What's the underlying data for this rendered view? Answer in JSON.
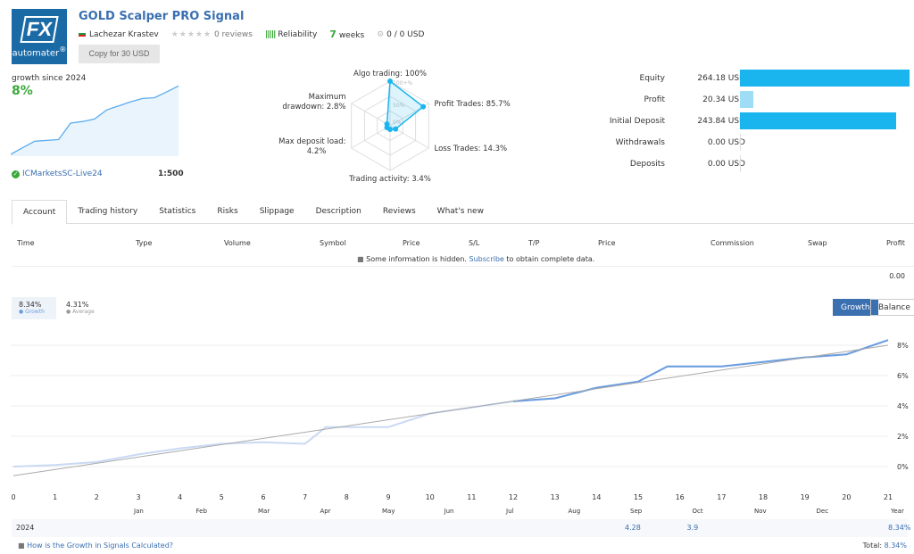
{
  "header": {
    "logo_text": "FX automater",
    "title": "GOLD Scalper PRO Signal",
    "author": "Lachezar Krastev",
    "reviews": "0 reviews",
    "rating_stars": 0,
    "reliability": "Reliability",
    "weeks_num": "7",
    "weeks_label": "weeks",
    "subscribers": "0 / 0 USD",
    "copy_button": "Copy for 30 USD"
  },
  "summary": {
    "growth_label": "growth since 2024",
    "growth_value": "8%",
    "broker": "ICMarketsSC-Live24",
    "leverage": "1:500",
    "mini_chart": [
      0,
      0.8,
      1.6,
      1.7,
      1.8,
      3.8,
      4.0,
      4.3,
      5.4,
      5.9,
      6.4,
      6.8,
      6.9,
      7.6,
      8.34
    ]
  },
  "radar": {
    "labels": [
      "Algo trading: 100%",
      "Profit Trades: 85.7%",
      "Loss Trades: 14.3%",
      "Trading activity: 3.4%",
      "Max deposit load: 4.2%",
      "Maximum drawdown: 2.8%"
    ],
    "values": [
      100,
      85.7,
      14.3,
      3.4,
      4.2,
      2.8
    ],
    "grid_labels": [
      "100+%",
      "50%",
      "0%"
    ]
  },
  "balance": {
    "rows": [
      {
        "label": "Equity",
        "value": "264.18 USD",
        "amount": 264.18,
        "color": "#1ab5ee"
      },
      {
        "label": "Profit",
        "value": "20.34 USD",
        "amount": 20.34,
        "color": "#9fdcf5"
      },
      {
        "label": "Initial Deposit",
        "value": "243.84 USD",
        "amount": 243.84,
        "color": "#1ab5ee"
      },
      {
        "label": "Withdrawals",
        "value": "0.00 USD",
        "amount": 0,
        "color": "#1ab5ee"
      },
      {
        "label": "Deposits",
        "value": "0.00 USD",
        "amount": 0,
        "color": "#1ab5ee"
      }
    ]
  },
  "tabs": [
    "Account",
    "Trading history",
    "Statistics",
    "Risks",
    "Slippage",
    "Description",
    "Reviews",
    "What's new"
  ],
  "table": {
    "headers": [
      "Time",
      "Type",
      "Volume",
      "Symbol",
      "Price",
      "S/L",
      "T/P",
      "Price",
      "Commission",
      "Swap",
      "Profit"
    ],
    "hidden_pre": "Some information is hidden.",
    "hidden_link": "Subscribe",
    "hidden_post": "to obtain complete data.",
    "total": "0.00"
  },
  "chart_data": {
    "type": "line",
    "legend": [
      {
        "value": "8.34%",
        "name": "Growth"
      },
      {
        "value": "4.31%",
        "name": "Average"
      }
    ],
    "buttons": [
      "Growth",
      "Balance"
    ],
    "active_button": "Growth",
    "xlim": [
      0,
      21
    ],
    "ylim": [
      -0.5,
      8.5
    ],
    "x_ticks": [
      0,
      1,
      2,
      3,
      4,
      5,
      6,
      7,
      8,
      9,
      10,
      11,
      12,
      13,
      14,
      15,
      16,
      17,
      18,
      19,
      20,
      21
    ],
    "y_ticks": [
      "0%",
      "2%",
      "4%",
      "6%",
      "8%"
    ],
    "month_labels": [
      "Jan",
      "Feb",
      "Mar",
      "Apr",
      "May",
      "Jun",
      "Jul",
      "Aug",
      "Sep",
      "Oct",
      "Nov",
      "Dec",
      "Year"
    ],
    "series": [
      {
        "name": "Growth",
        "x": [
          0,
          1,
          2,
          3,
          4,
          5,
          6,
          7,
          7.5,
          8,
          9,
          10,
          11,
          12,
          13,
          14,
          15,
          15.7,
          16,
          17,
          18,
          19,
          20,
          21
        ],
        "y": [
          0,
          0.1,
          0.3,
          0.8,
          1.2,
          1.5,
          1.6,
          1.5,
          2.6,
          2.6,
          2.6,
          3.5,
          3.9,
          4.3,
          4.5,
          5.2,
          5.6,
          6.6,
          6.6,
          6.6,
          6.9,
          7.2,
          7.4,
          8.34
        ],
        "color": "#6a9de0"
      },
      {
        "name": "Average",
        "x": [
          0,
          21
        ],
        "y": [
          -0.6,
          8.0
        ],
        "color": "#aaaaaa"
      }
    ]
  },
  "monthly": {
    "year": "2024",
    "values": [
      "",
      "",
      "",
      "",
      "",
      "",
      "",
      "",
      "4.28",
      "3.9",
      "",
      "",
      ""
    ],
    "year_total": "8.34%"
  },
  "footer": {
    "link": "How is the Growth in Signals Calculated?",
    "total_label": "Total:",
    "total_value": "8.34%"
  }
}
